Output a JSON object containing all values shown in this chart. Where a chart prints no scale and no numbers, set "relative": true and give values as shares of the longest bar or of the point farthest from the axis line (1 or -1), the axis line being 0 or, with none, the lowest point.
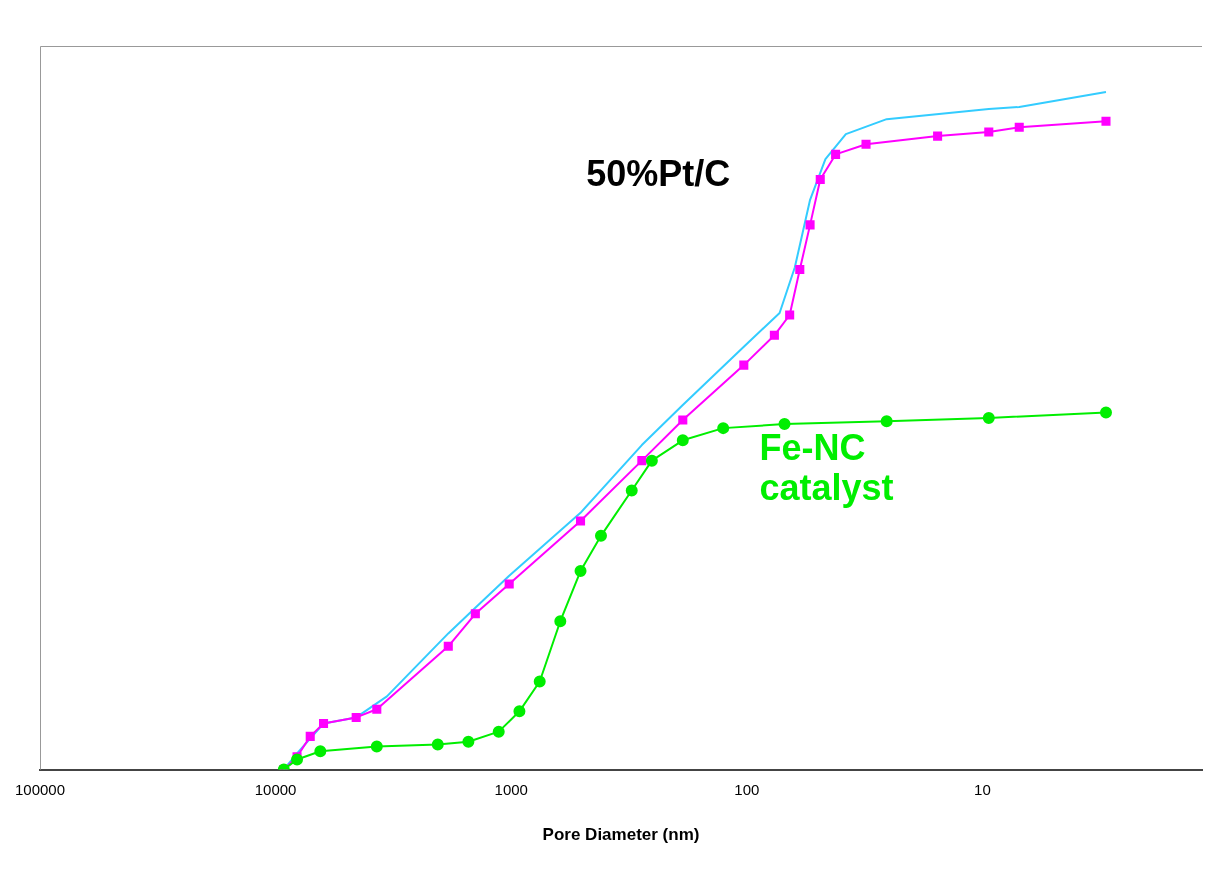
{
  "chart_data": {
    "type": "line",
    "xlabel": "Pore Diameter (nm)",
    "log": "x",
    "relative": true,
    "xlim": [
      100000,
      1.17
    ],
    "xticks": [
      100000,
      10000,
      1000,
      100,
      10
    ],
    "grid": false,
    "legend": false,
    "annotations": [
      "50%Pt/C"
    ],
    "series": [
      {
        "color": "#33ccff",
        "marker": "none",
        "x": [
          9230,
          8110,
          6260,
          4550,
          3370,
          1850,
          1420,
          1020,
          508,
          279,
          187,
          103,
          72.6,
          62.6,
          53.9,
          46.4,
          38.0,
          25.5,
          9.4,
          6.98,
          2.99
        ],
        "values": [
          0,
          0.024,
          0.068,
          0.077,
          0.108,
          0.201,
          0.239,
          0.286,
          0.379,
          0.479,
          0.538,
          0.624,
          0.674,
          0.741,
          0.841,
          0.901,
          0.938,
          0.96,
          0.975,
          0.978,
          1.0
        ]
      },
      {
        "color": "#ff00ff",
        "marker": "square",
        "x": [
          9230,
          8110,
          7130,
          6260,
          4550,
          3720,
          1850,
          1420,
          1020,
          508,
          279,
          187,
          103,
          76.4,
          65.8,
          59.6,
          53.9,
          48.8,
          42.0,
          31.2,
          15.5,
          9.4,
          6.98,
          2.99
        ],
        "values": [
          0,
          0.019,
          0.049,
          0.068,
          0.077,
          0.089,
          0.182,
          0.23,
          0.274,
          0.367,
          0.456,
          0.516,
          0.597,
          0.641,
          0.671,
          0.738,
          0.804,
          0.871,
          0.908,
          0.923,
          0.935,
          0.941,
          0.948,
          0.957
        ]
      },
      {
        "name": "Fe-NC catalyst",
        "color": "#00ee00",
        "marker": "circle",
        "x": [
          9230,
          8110,
          6460,
          3720,
          2050,
          1520,
          1130,
          923,
          757,
          619,
          508,
          416,
          308,
          253,
          187,
          126,
          69.2,
          25.5,
          9.4,
          2.99
        ],
        "values": [
          0,
          0.015,
          0.027,
          0.034,
          0.037,
          0.041,
          0.056,
          0.086,
          0.13,
          0.219,
          0.293,
          0.345,
          0.412,
          0.456,
          0.486,
          0.504,
          0.51,
          0.514,
          0.519,
          0.527
        ]
      }
    ]
  }
}
